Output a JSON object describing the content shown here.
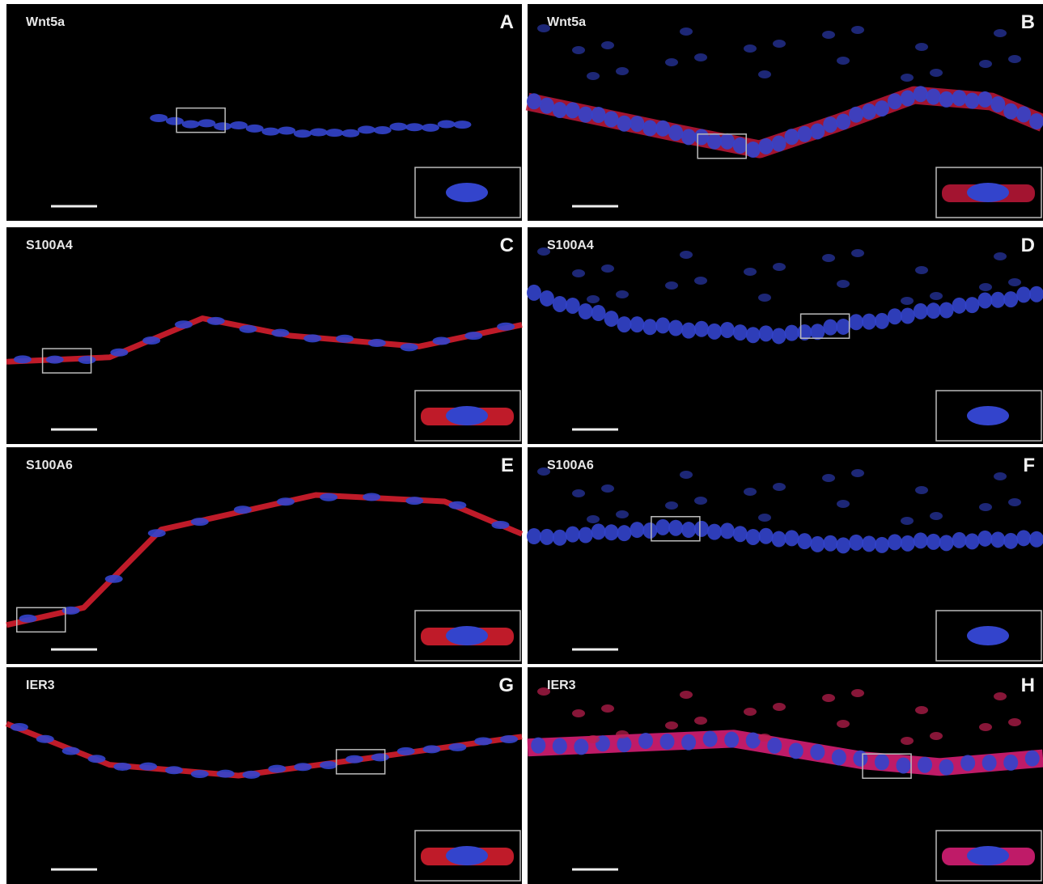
{
  "panels": [
    {
      "marker": "Wnt5a",
      "letter": "A"
    },
    {
      "marker": "Wnt5a",
      "letter": "B"
    },
    {
      "marker": "S100A4",
      "letter": "C"
    },
    {
      "marker": "S100A4",
      "letter": "D"
    },
    {
      "marker": "S100A6",
      "letter": "E"
    },
    {
      "marker": "S100A6",
      "letter": "F"
    },
    {
      "marker": "IER3",
      "letter": "G"
    },
    {
      "marker": "IER3",
      "letter": "H"
    }
  ]
}
